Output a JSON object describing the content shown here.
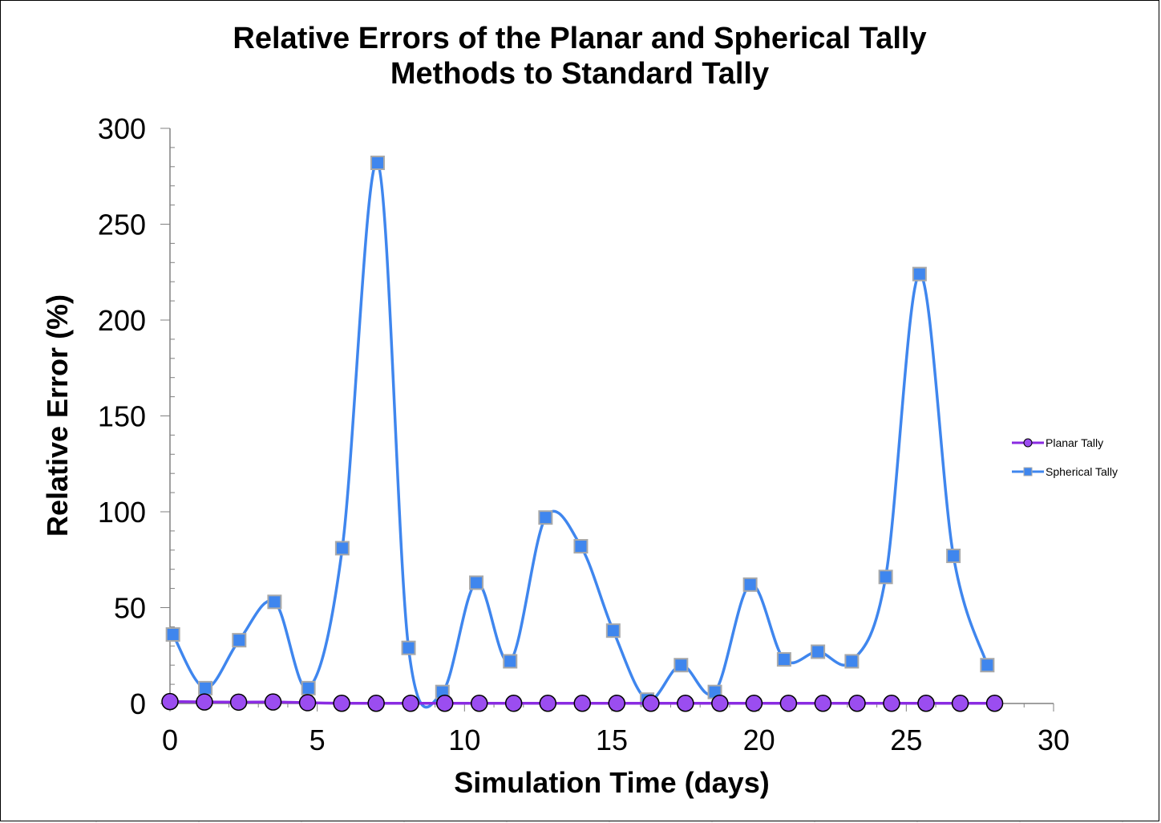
{
  "chart_data": {
    "type": "line",
    "title_line1": "Relative Errors of the Planar and Spherical Tally",
    "title_line2": "Methods to Standard Tally",
    "xlabel": "Simulation Time (days)",
    "ylabel": "Relative Error (%)",
    "xlim": [
      0,
      30
    ],
    "ylim": [
      0,
      300
    ],
    "x_ticks": [
      0,
      5,
      10,
      15,
      20,
      25,
      30
    ],
    "y_ticks": [
      0,
      50,
      100,
      150,
      200,
      250,
      300
    ],
    "grid": false,
    "smooth": true,
    "legend_position": "right",
    "series": [
      {
        "name": "Planar Tally",
        "marker": "circle",
        "color": "#8a2be2",
        "marker_fill": "#9b4df0",
        "x": [
          0,
          1.17,
          2.33,
          3.5,
          4.67,
          5.83,
          7.0,
          8.17,
          9.33,
          10.5,
          11.67,
          12.83,
          14.0,
          15.17,
          16.33,
          17.5,
          18.67,
          19.83,
          21.0,
          22.17,
          23.33,
          24.5,
          25.67,
          26.83,
          28.0
        ],
        "y": [
          1,
          0.8,
          0.7,
          0.8,
          0.4,
          0.1,
          0.1,
          0.1,
          0.1,
          0.1,
          0.1,
          0.1,
          0.1,
          0.1,
          0.1,
          0.1,
          0.1,
          0.1,
          0.1,
          0.1,
          0.1,
          0.1,
          0.1,
          0.1,
          0.1
        ]
      },
      {
        "name": "Spherical Tally",
        "marker": "square",
        "color": "#3f86ee",
        "marker_fill": "#3f86ee",
        "x": [
          0.1,
          1.2,
          2.35,
          3.55,
          4.7,
          5.85,
          7.05,
          8.1,
          9.25,
          10.4,
          11.55,
          12.75,
          13.95,
          15.05,
          16.2,
          17.35,
          18.5,
          19.7,
          20.85,
          22.0,
          23.15,
          24.3,
          25.45,
          26.6,
          27.75
        ],
        "y": [
          36,
          8,
          33,
          53,
          8,
          81,
          282,
          29,
          6,
          63,
          22,
          97,
          82,
          38,
          2,
          20,
          6,
          62,
          23,
          27,
          22,
          66,
          224,
          77,
          20
        ]
      }
    ]
  }
}
